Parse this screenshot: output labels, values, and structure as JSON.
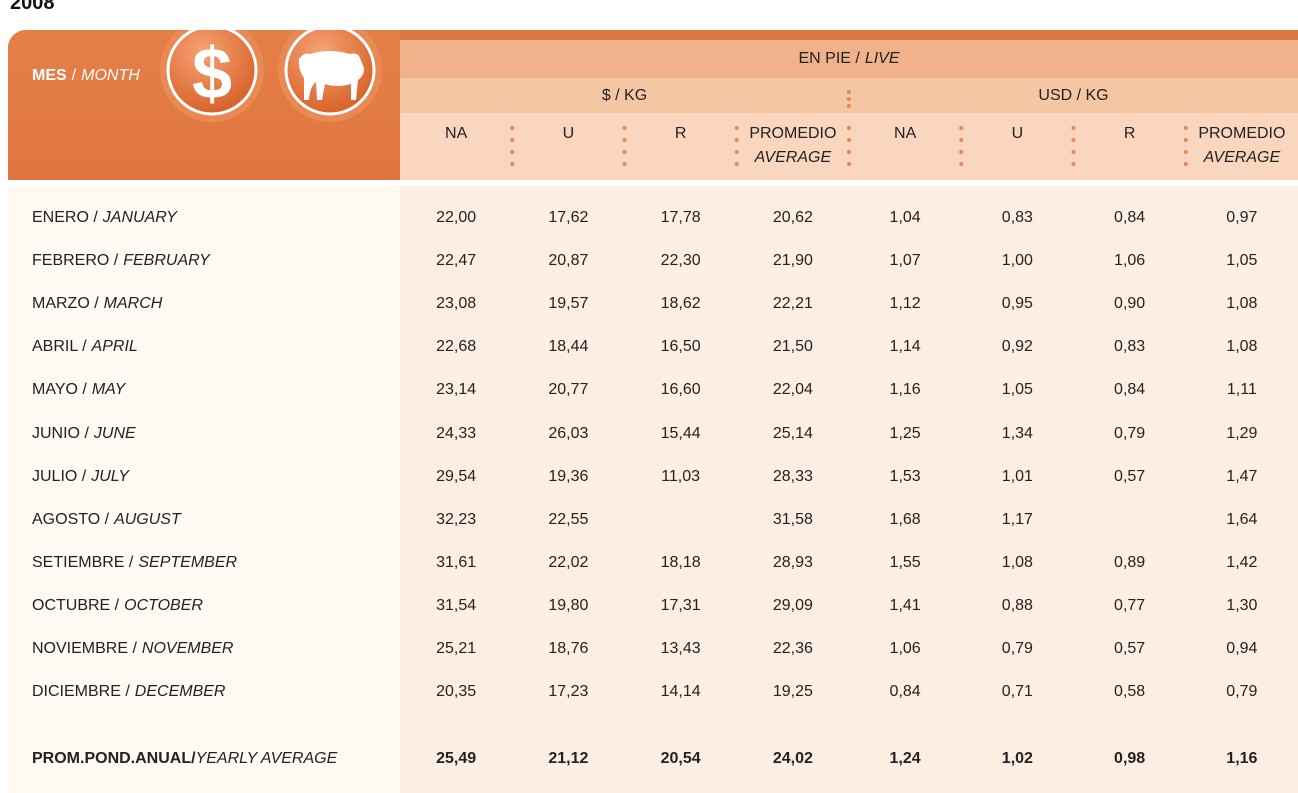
{
  "year": "2008",
  "header": {
    "month": [
      "MES",
      "/",
      "MONTH"
    ],
    "icon_currency": "$",
    "live": [
      "EN PIE /",
      "LIVE"
    ]
  },
  "groups": [
    {
      "name": "$ / KG",
      "columns": [
        "NA",
        "U",
        "R",
        "PROMEDIO"
      ],
      "average_en": "AVERAGE"
    },
    {
      "name": "USD / KG",
      "columns": [
        "NA",
        "U",
        "R",
        "PROMEDIO"
      ],
      "average_en": "AVERAGE"
    }
  ],
  "rows": [
    {
      "label": [
        "ENERO /",
        "JANUARY"
      ],
      "values": [
        "22,00",
        "17,62",
        "17,78",
        "20,62",
        "1,04",
        "0,83",
        "0,84",
        "0,97"
      ]
    },
    {
      "label": [
        "FEBRERO /",
        "FEBRUARY"
      ],
      "values": [
        "22,47",
        "20,87",
        "22,30",
        "21,90",
        "1,07",
        "1,00",
        "1,06",
        "1,05"
      ]
    },
    {
      "label": [
        "MARZO /",
        "MARCH"
      ],
      "values": [
        "23,08",
        "19,57",
        "18,62",
        "22,21",
        "1,12",
        "0,95",
        "0,90",
        "1,08"
      ]
    },
    {
      "label": [
        "ABRIL /",
        "APRIL"
      ],
      "values": [
        "22,68",
        "18,44",
        "16,50",
        "21,50",
        "1,14",
        "0,92",
        "0,83",
        "1,08"
      ]
    },
    {
      "label": [
        "MAYO /",
        "MAY"
      ],
      "values": [
        "23,14",
        "20,77",
        "16,60",
        "22,04",
        "1,16",
        "1,05",
        "0,84",
        "1,11"
      ]
    },
    {
      "label": [
        "JUNIO /",
        "JUNE"
      ],
      "values": [
        "24,33",
        "26,03",
        "15,44",
        "25,14",
        "1,25",
        "1,34",
        "0,79",
        "1,29"
      ]
    },
    {
      "label": [
        "JULIO /",
        "JULY"
      ],
      "values": [
        "29,54",
        "19,36",
        "11,03",
        "28,33",
        "1,53",
        "1,01",
        "0,57",
        "1,47"
      ]
    },
    {
      "label": [
        "AGOSTO /",
        "AUGUST"
      ],
      "values": [
        "32,23",
        "22,55",
        null,
        "31,58",
        "1,68",
        "1,17",
        null,
        "1,64"
      ]
    },
    {
      "label": [
        "SETIEMBRE /",
        "SEPTEMBER"
      ],
      "values": [
        "31,61",
        "22,02",
        "18,18",
        "28,93",
        "1,55",
        "1,08",
        "0,89",
        "1,42"
      ]
    },
    {
      "label": [
        "OCTUBRE /",
        "OCTOBER"
      ],
      "values": [
        "31,54",
        "19,80",
        "17,31",
        "29,09",
        "1,41",
        "0,88",
        "0,77",
        "1,30"
      ]
    },
    {
      "label": [
        "NOVIEMBRE /",
        "NOVEMBER"
      ],
      "values": [
        "25,21",
        "18,76",
        "13,43",
        "22,36",
        "1,06",
        "0,79",
        "0,57",
        "0,94"
      ]
    },
    {
      "label": [
        "DICIEMBRE /",
        "DECEMBER"
      ],
      "values": [
        "20,35",
        "17,23",
        "14,14",
        "19,25",
        "0,84",
        "0,71",
        "0,58",
        "0,79"
      ]
    }
  ],
  "total": {
    "label": [
      "PROM.POND.ANUAL/",
      "YEARLY AVERAGE"
    ],
    "values": [
      "25,49",
      "21,12",
      "20,54",
      "24,02",
      "1,24",
      "1,02",
      "0,98",
      "1,16"
    ]
  }
}
